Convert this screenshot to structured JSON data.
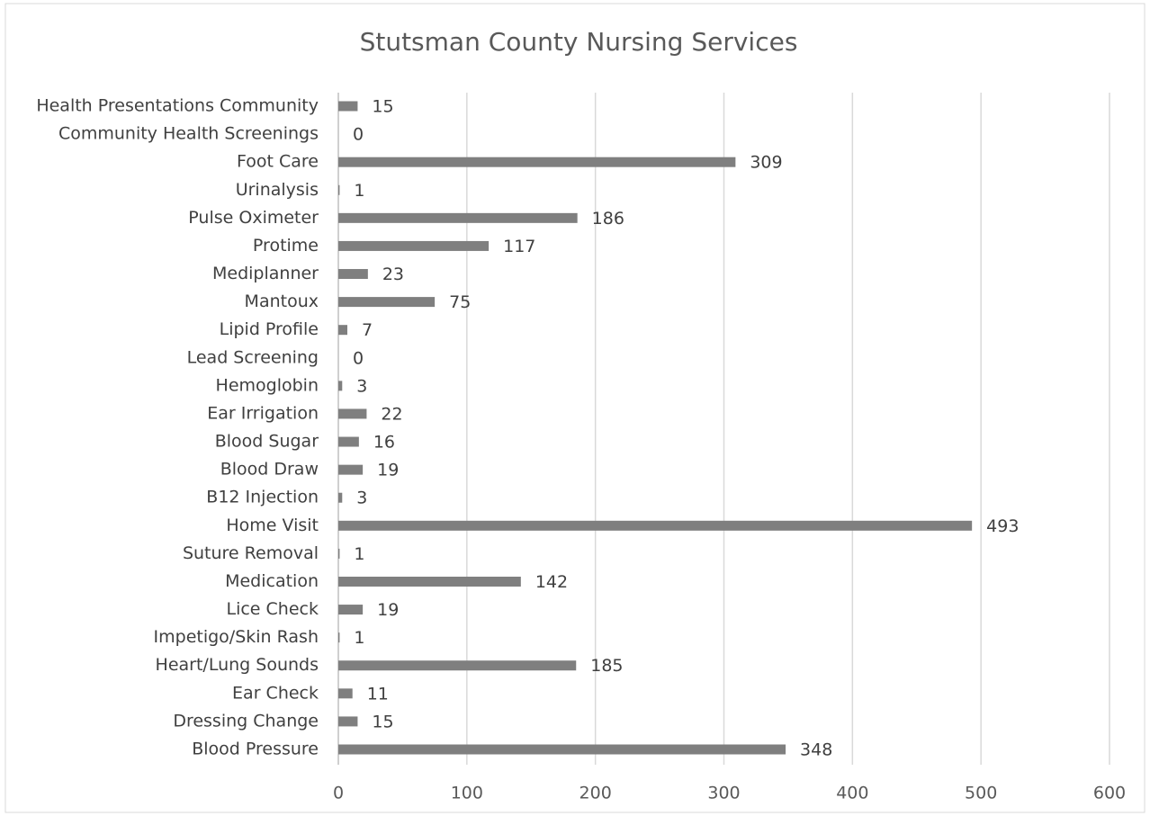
{
  "chart_data": {
    "type": "bar",
    "orientation": "horizontal",
    "title": "Stutsman County Nursing Services",
    "categories": [
      "Health Presentations Community",
      "Community Health Screenings",
      "Foot Care",
      "Urinalysis",
      "Pulse Oximeter",
      "Protime",
      "Mediplanner",
      "Mantoux",
      "Lipid Profile",
      "Lead Screening",
      "Hemoglobin",
      "Ear Irrigation",
      "Blood Sugar",
      "Blood Draw",
      "B12 Injection",
      "Home Visit",
      "Suture Removal",
      "Medication",
      "Lice Check",
      "Impetigo/Skin Rash",
      "Heart/Lung Sounds",
      "Ear Check",
      "Dressing Change",
      "Blood Pressure"
    ],
    "values": [
      15,
      0,
      309,
      1,
      186,
      117,
      23,
      75,
      7,
      0,
      3,
      22,
      16,
      19,
      3,
      493,
      1,
      142,
      19,
      1,
      185,
      11,
      15,
      348
    ],
    "color": "#7f7f7f",
    "xlim": [
      0,
      600
    ],
    "xticks": [
      0,
      100,
      200,
      300,
      400,
      500,
      600
    ],
    "grid": true
  }
}
